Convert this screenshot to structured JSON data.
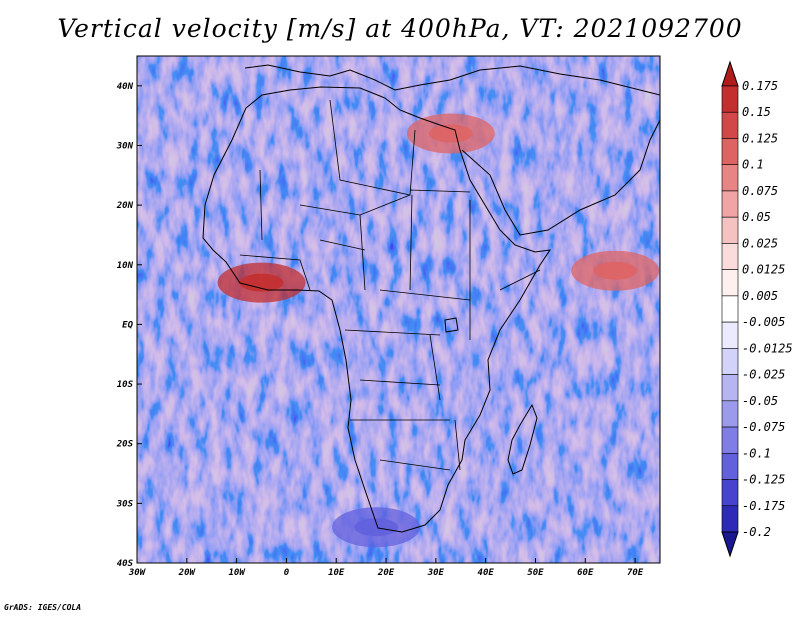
{
  "title": "Vertical velocity [m/s] at 400hPa, VT: 2021092700",
  "credit": "GrADS: IGES/COLA",
  "map": {
    "lon_range": [
      -30,
      75
    ],
    "lat_range": [
      -40,
      45
    ],
    "lat_ticks": [
      {
        "lat": 40,
        "label": "40N"
      },
      {
        "lat": 30,
        "label": "30N"
      },
      {
        "lat": 20,
        "label": "20N"
      },
      {
        "lat": 10,
        "label": "10N"
      },
      {
        "lat": 0,
        "label": "EQ"
      },
      {
        "lat": -10,
        "label": "10S"
      },
      {
        "lat": -20,
        "label": "20S"
      },
      {
        "lat": -30,
        "label": "30S"
      },
      {
        "lat": -40,
        "label": "40S"
      }
    ],
    "lon_ticks": [
      {
        "lon": -30,
        "label": "30W"
      },
      {
        "lon": -20,
        "label": "20W"
      },
      {
        "lon": -10,
        "label": "10W"
      },
      {
        "lon": 0,
        "label": "0"
      },
      {
        "lon": 10,
        "label": "10E"
      },
      {
        "lon": 20,
        "label": "20E"
      },
      {
        "lon": 30,
        "label": "30E"
      },
      {
        "lon": 40,
        "label": "40E"
      },
      {
        "lon": 50,
        "label": "50E"
      },
      {
        "lon": 60,
        "label": "60E"
      },
      {
        "lon": 70,
        "label": "70E"
      }
    ],
    "features": [
      {
        "name": "west-african-ascent",
        "lon": -5,
        "lat": 7,
        "value": 0.15
      },
      {
        "name": "red-sea-ascent",
        "lon": 33,
        "lat": 32,
        "value": 0.1
      },
      {
        "name": "arabian-sea-ascent",
        "lon": 66,
        "lat": 9,
        "value": 0.1
      },
      {
        "name": "southern-ocean-descent",
        "lon": 18,
        "lat": -34,
        "value": -0.125
      }
    ]
  },
  "colorbar": {
    "labels": [
      "0.175",
      "0.15",
      "0.125",
      "0.1",
      "0.075",
      "0.05",
      "0.025",
      "0.0125",
      "0.005",
      "-0.005",
      "-0.0125",
      "-0.025",
      "-0.05",
      "-0.075",
      "-0.1",
      "-0.125",
      "-0.175",
      "-0.2"
    ],
    "colors": [
      "#b01c1c",
      "#c32f2f",
      "#d24848",
      "#de6464",
      "#e88484",
      "#f0a4a4",
      "#f5c2c2",
      "#fadcdc",
      "#fff0f0",
      "#ffffff",
      "#ebeaff",
      "#d3d2f8",
      "#b6b5f2",
      "#9c9aec",
      "#7f7de6",
      "#6260dd",
      "#4643cf",
      "#2d2ab8",
      "#1a1890"
    ]
  }
}
